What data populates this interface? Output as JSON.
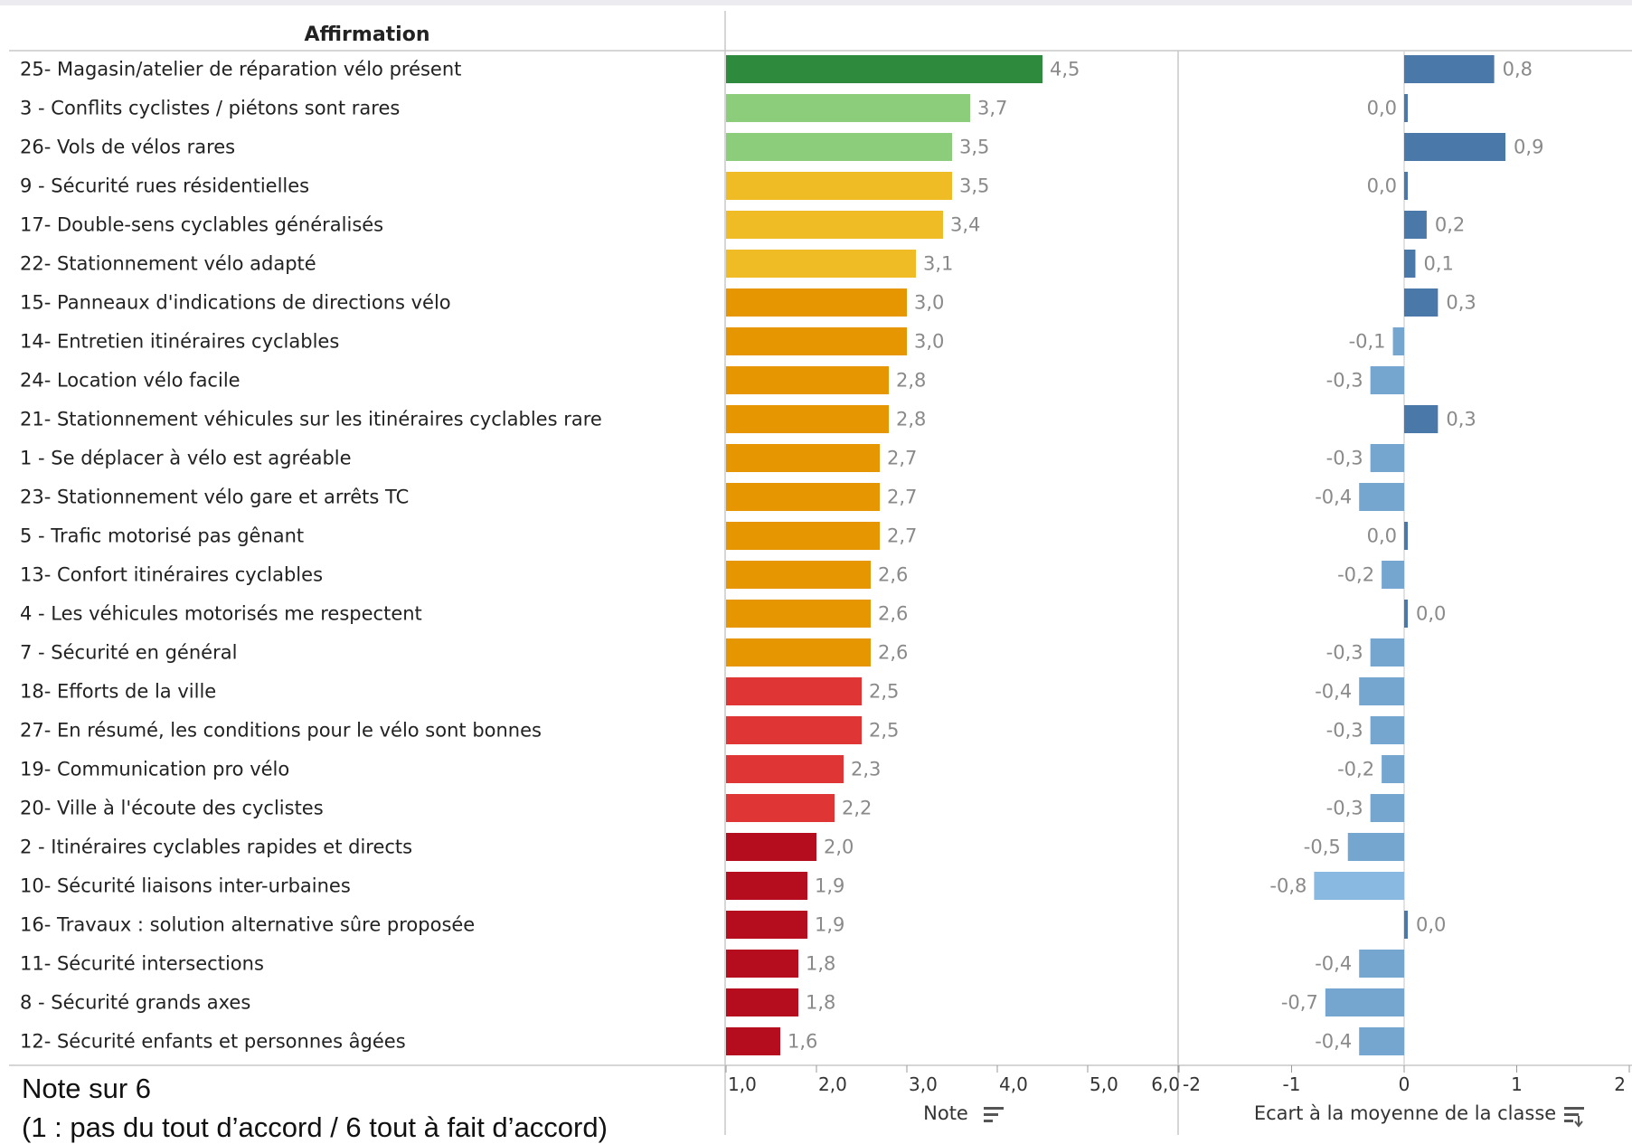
{
  "header": {
    "column_title": "Affirmation"
  },
  "footnote": {
    "line1": "Note sur 6",
    "line2": "(1 : pas du tout d’accord / 6 tout à fait d’accord)"
  },
  "chart_data": [
    {
      "type": "bar",
      "orientation": "horizontal",
      "xlabel": "Note",
      "xlim": [
        1.0,
        6.0
      ],
      "ticks": [
        "1,0",
        "2,0",
        "3,0",
        "4,0",
        "5,0",
        "6,0"
      ],
      "categories": [
        "25- Magasin/atelier de réparation vélo présent",
        "3 - Conflits cyclistes / piétons sont rares",
        "26- Vols de vélos rares",
        "9 - Sécurité rues résidentielles",
        "17- Double-sens cyclables généralisés",
        "22- Stationnement vélo adapté",
        "15- Panneaux d'indications de directions vélo",
        "14- Entretien itinéraires cyclables",
        "24- Location vélo facile",
        "21- Stationnement véhicules sur les itinéraires cyclables rare",
        "1 - Se déplacer à vélo est agréable",
        "23- Stationnement vélo gare et arrêts TC",
        "5 - Trafic motorisé pas gênant",
        "13- Confort itinéraires cyclables",
        "4 - Les véhicules motorisés me respectent",
        "7 - Sécurité en général",
        "18- Efforts de la ville",
        "27- En résumé, les conditions pour le vélo sont bonnes",
        "19- Communication pro vélo",
        "20- Ville à l'écoute des cyclistes",
        "2 - Itinéraires cyclables rapides et directs",
        "10- Sécurité liaisons inter-urbaines",
        "16- Travaux : solution alternative sûre proposée",
        "11- Sécurité intersections",
        "8 - Sécurité grands axes",
        "12- Sécurité enfants et personnes âgées"
      ],
      "values": [
        4.5,
        3.7,
        3.5,
        3.5,
        3.4,
        3.1,
        3.0,
        3.0,
        2.8,
        2.8,
        2.7,
        2.7,
        2.7,
        2.6,
        2.6,
        2.6,
        2.5,
        2.5,
        2.3,
        2.2,
        2.0,
        1.9,
        1.9,
        1.8,
        1.8,
        1.6
      ],
      "labels": [
        "4,5",
        "3,7",
        "3,5",
        "3,5",
        "3,4",
        "3,1",
        "3,0",
        "3,0",
        "2,8",
        "2,8",
        "2,7",
        "2,7",
        "2,7",
        "2,6",
        "2,6",
        "2,6",
        "2,5",
        "2,5",
        "2,3",
        "2,2",
        "2,0",
        "1,9",
        "1,9",
        "1,8",
        "1,8",
        "1,6"
      ],
      "colors": [
        "#2e8b3e",
        "#8ccd7c",
        "#8ccd7c",
        "#f0bc26",
        "#f0bc26",
        "#f0bc26",
        "#e59600",
        "#e59600",
        "#e59600",
        "#e59600",
        "#e59600",
        "#e59600",
        "#e59600",
        "#e59600",
        "#e59600",
        "#e59600",
        "#e03535",
        "#e03535",
        "#e03535",
        "#e03535",
        "#b50c1e",
        "#b50c1e",
        "#b50c1e",
        "#b50c1e",
        "#b50c1e",
        "#b50c1e"
      ]
    },
    {
      "type": "bar",
      "orientation": "horizontal",
      "xlabel": "Ecart à la moyenne de la classe",
      "xlim": [
        -2,
        2
      ],
      "ticks": [
        "-2",
        "-1",
        "0",
        "1",
        "2"
      ],
      "values": [
        0.8,
        0.0,
        0.9,
        0.0,
        0.2,
        0.1,
        0.3,
        -0.1,
        -0.3,
        0.3,
        -0.3,
        -0.4,
        0.0,
        -0.2,
        0.0,
        -0.3,
        -0.4,
        -0.3,
        -0.2,
        -0.3,
        -0.5,
        -0.8,
        0.0,
        -0.4,
        -0.7,
        -0.4
      ],
      "labels": [
        "0,8",
        "0,0",
        "0,9",
        "0,0",
        "0,2",
        "0,1",
        "0,3",
        "-0,1",
        "-0,3",
        "0,3",
        "-0,3",
        "-0,4",
        "0,0",
        "-0,2",
        "0,0",
        "-0,3",
        "-0,4",
        "-0,3",
        "-0,2",
        "-0,3",
        "-0,5",
        "-0,8",
        "0,0",
        "-0,4",
        "-0,7",
        "-0,4"
      ],
      "colors": {
        "positive": "#4a79a9",
        "negative": "#74a6d0",
        "most_negative": "#89b8e0"
      }
    }
  ]
}
